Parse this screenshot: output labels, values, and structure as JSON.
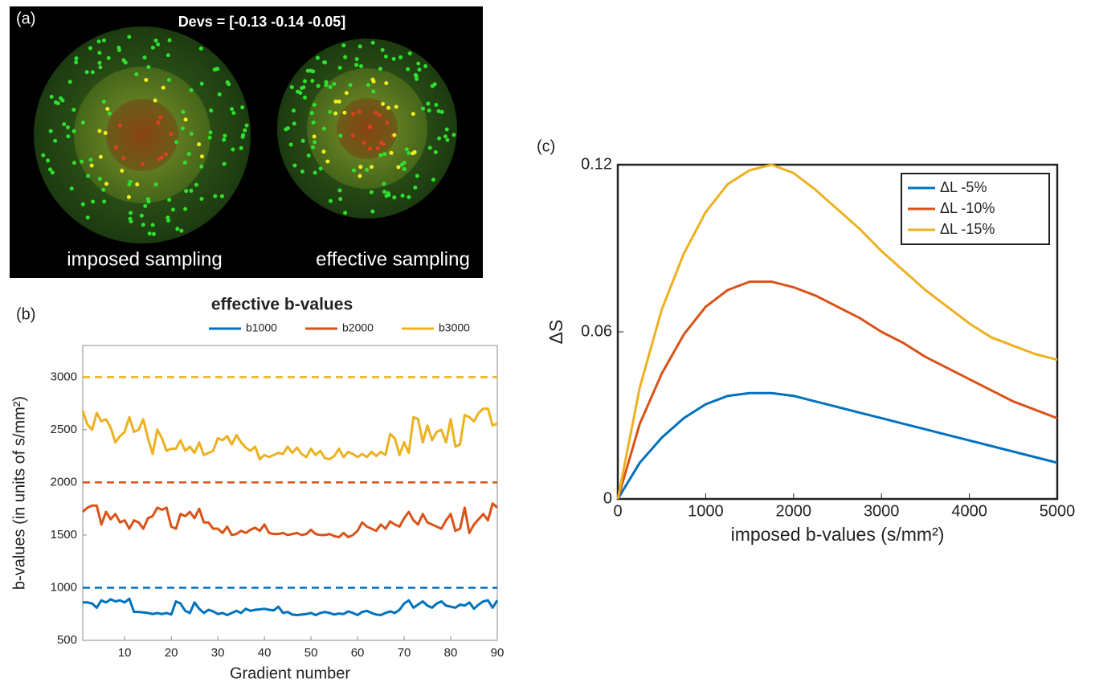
{
  "panel_a": {
    "panel_label": "(a)",
    "title": "Devs = [-0.13 -0.14 -0.05]",
    "captions": [
      "imposed sampling",
      "effective sampling"
    ]
  },
  "chart_data": [
    {
      "type": "line",
      "panel_label": "(b)",
      "title": "effective b-values",
      "x_label": "Gradient number",
      "y_label": "b-values (in units of s/mm²)",
      "x": [
        1,
        2,
        3,
        4,
        5,
        6,
        7,
        8,
        9,
        10,
        11,
        12,
        13,
        14,
        15,
        16,
        17,
        18,
        19,
        20,
        21,
        22,
        23,
        24,
        25,
        26,
        27,
        28,
        29,
        30,
        31,
        32,
        33,
        34,
        35,
        36,
        37,
        38,
        39,
        40,
        41,
        42,
        43,
        44,
        45,
        46,
        47,
        48,
        49,
        50,
        51,
        52,
        53,
        54,
        55,
        56,
        57,
        58,
        59,
        60,
        61,
        62,
        63,
        64,
        65,
        66,
        67,
        68,
        69,
        70,
        71,
        72,
        73,
        74,
        75,
        76,
        77,
        78,
        79,
        80,
        81,
        82,
        83,
        84,
        85,
        86,
        87,
        88,
        89,
        90
      ],
      "xlim": [
        1,
        90
      ],
      "xticks": [
        10,
        20,
        30,
        40,
        50,
        60,
        70,
        80,
        90
      ],
      "ylim": [
        500,
        3300
      ],
      "yticks": [
        500,
        1000,
        1500,
        2000,
        2500,
        3000
      ],
      "legend": "top",
      "reference_lines": [
        {
          "value": 1000,
          "color": "#0072bd"
        },
        {
          "value": 2000,
          "color": "#d95319"
        },
        {
          "value": 3000,
          "color": "#edb120"
        }
      ],
      "series": [
        {
          "name": "b1000",
          "color": "#0072bd",
          "values": [
            860,
            860,
            850,
            810,
            880,
            860,
            890,
            870,
            880,
            860,
            895,
            770,
            770,
            765,
            760,
            750,
            760,
            750,
            760,
            745,
            870,
            850,
            780,
            760,
            860,
            800,
            760,
            790,
            775,
            750,
            760,
            740,
            760,
            780,
            760,
            800,
            780,
            790,
            795,
            800,
            790,
            785,
            820,
            760,
            770,
            745,
            740,
            745,
            750,
            760,
            740,
            760,
            770,
            760,
            745,
            755,
            750,
            775,
            760,
            740,
            770,
            780,
            760,
            745,
            740,
            760,
            775,
            760,
            790,
            850,
            880,
            810,
            840,
            870,
            830,
            810,
            850,
            870,
            830,
            820,
            810,
            840,
            830,
            860,
            800,
            840,
            870,
            880,
            810,
            880
          ]
        },
        {
          "name": "b2000",
          "color": "#d95319",
          "values": [
            1720,
            1760,
            1780,
            1780,
            1600,
            1720,
            1650,
            1700,
            1620,
            1640,
            1560,
            1640,
            1620,
            1560,
            1660,
            1680,
            1760,
            1740,
            1760,
            1580,
            1560,
            1700,
            1680,
            1720,
            1660,
            1750,
            1620,
            1620,
            1560,
            1560,
            1520,
            1580,
            1500,
            1510,
            1540,
            1520,
            1550,
            1570,
            1540,
            1600,
            1520,
            1510,
            1510,
            1520,
            1500,
            1510,
            1520,
            1500,
            1510,
            1550,
            1510,
            1500,
            1500,
            1510,
            1490,
            1480,
            1520,
            1480,
            1500,
            1540,
            1620,
            1580,
            1560,
            1540,
            1600,
            1560,
            1630,
            1600,
            1580,
            1660,
            1720,
            1640,
            1600,
            1700,
            1620,
            1600,
            1580,
            1560,
            1640,
            1700,
            1540,
            1560,
            1760,
            1520,
            1600,
            1650,
            1700,
            1640,
            1800,
            1760
          ]
        },
        {
          "name": "b3000",
          "color": "#edb120",
          "values": [
            2680,
            2550,
            2500,
            2660,
            2580,
            2600,
            2520,
            2380,
            2440,
            2480,
            2620,
            2480,
            2500,
            2600,
            2420,
            2270,
            2500,
            2420,
            2300,
            2320,
            2320,
            2400,
            2300,
            2340,
            2280,
            2380,
            2260,
            2280,
            2300,
            2420,
            2400,
            2440,
            2360,
            2450,
            2380,
            2330,
            2300,
            2340,
            2220,
            2260,
            2240,
            2260,
            2280,
            2270,
            2340,
            2280,
            2330,
            2270,
            2240,
            2320,
            2260,
            2300,
            2230,
            2220,
            2250,
            2320,
            2240,
            2290,
            2270,
            2240,
            2270,
            2240,
            2290,
            2250,
            2290,
            2260,
            2460,
            2420,
            2260,
            2380,
            2280,
            2620,
            2600,
            2380,
            2540,
            2400,
            2480,
            2500,
            2380,
            2600,
            2340,
            2360,
            2640,
            2620,
            2580,
            2660,
            2700,
            2700,
            2540,
            2560
          ]
        }
      ]
    },
    {
      "type": "line",
      "panel_label": "(c)",
      "x_label": "imposed b-values (s/mm²)",
      "y_label": "ΔS",
      "x": [
        0,
        250,
        500,
        750,
        1000,
        1250,
        1500,
        1750,
        2000,
        2250,
        2500,
        2750,
        3000,
        3250,
        3500,
        3750,
        4000,
        4250,
        4500,
        4750,
        5000
      ],
      "xlim": [
        0,
        5000
      ],
      "xticks": [
        0,
        1000,
        2000,
        3000,
        4000,
        5000
      ],
      "ylim": [
        0,
        0.12
      ],
      "yticks": [
        0,
        0.06,
        0.12
      ],
      "legend": "top-right",
      "series": [
        {
          "name": "ΔL -5%",
          "color": "#0072bd",
          "values": [
            0,
            0.013,
            0.022,
            0.029,
            0.034,
            0.037,
            0.038,
            0.038,
            0.037,
            0.035,
            0.033,
            0.031,
            0.029,
            0.027,
            0.025,
            0.023,
            0.021,
            0.019,
            0.017,
            0.015,
            0.013
          ]
        },
        {
          "name": "ΔL -10%",
          "color": "#d95319",
          "values": [
            0,
            0.027,
            0.045,
            0.059,
            0.069,
            0.075,
            0.078,
            0.078,
            0.076,
            0.073,
            0.069,
            0.065,
            0.06,
            0.056,
            0.051,
            0.047,
            0.043,
            0.039,
            0.035,
            0.032,
            0.029
          ]
        },
        {
          "name": "ΔL -15%",
          "color": "#edb120",
          "values": [
            0,
            0.04,
            0.068,
            0.088,
            0.103,
            0.113,
            0.118,
            0.12,
            0.117,
            0.111,
            0.104,
            0.097,
            0.089,
            0.082,
            0.075,
            0.069,
            0.063,
            0.058,
            0.055,
            0.052,
            0.05
          ]
        }
      ]
    }
  ]
}
